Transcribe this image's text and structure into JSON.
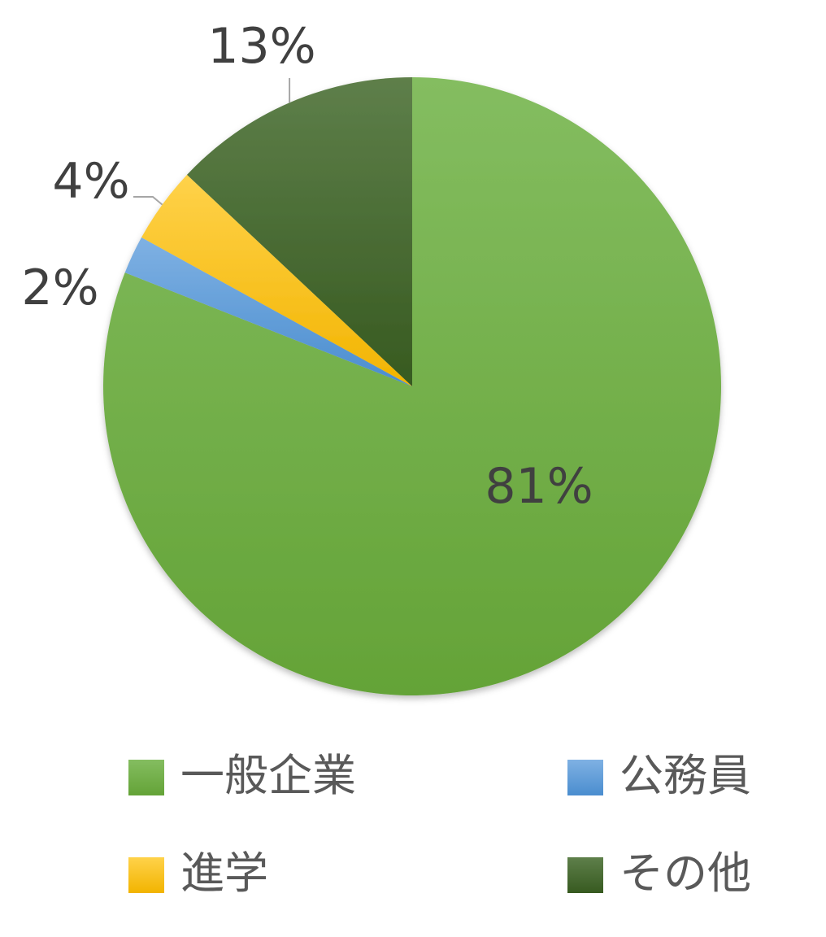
{
  "chart_data": {
    "type": "pie",
    "title": "",
    "categories": [
      "一般企業",
      "公務員",
      "進学",
      "その他"
    ],
    "values": [
      81,
      2,
      4,
      13
    ],
    "value_labels": [
      "81%",
      "2%",
      "4%",
      "13%"
    ],
    "colors": [
      "#70ad47",
      "#5b9bd5",
      "#ffc000",
      "#43682b"
    ],
    "start_angle_deg": 0,
    "direction": "clockwise",
    "legend_position": "bottom"
  }
}
